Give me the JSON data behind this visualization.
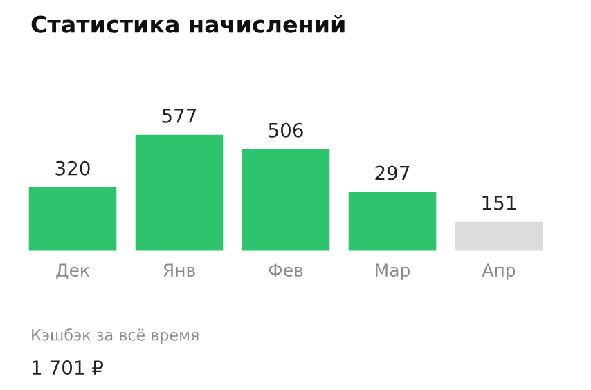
{
  "chart_data": {
    "type": "bar",
    "title": "Статистика начислений",
    "categories": [
      "Дек",
      "Янв",
      "Фев",
      "Мар",
      "Апр"
    ],
    "values": [
      320,
      577,
      506,
      297,
      151
    ],
    "colors": [
      "#2ec46d",
      "#2ec46d",
      "#2ec46d",
      "#2ec46d",
      "#dcdcdc"
    ],
    "data_labels": true,
    "grid": false,
    "legend": false,
    "tick_labels": "x",
    "annotations": [
      "Кэшбэк за всё время",
      "1 701 ₽"
    ]
  }
}
